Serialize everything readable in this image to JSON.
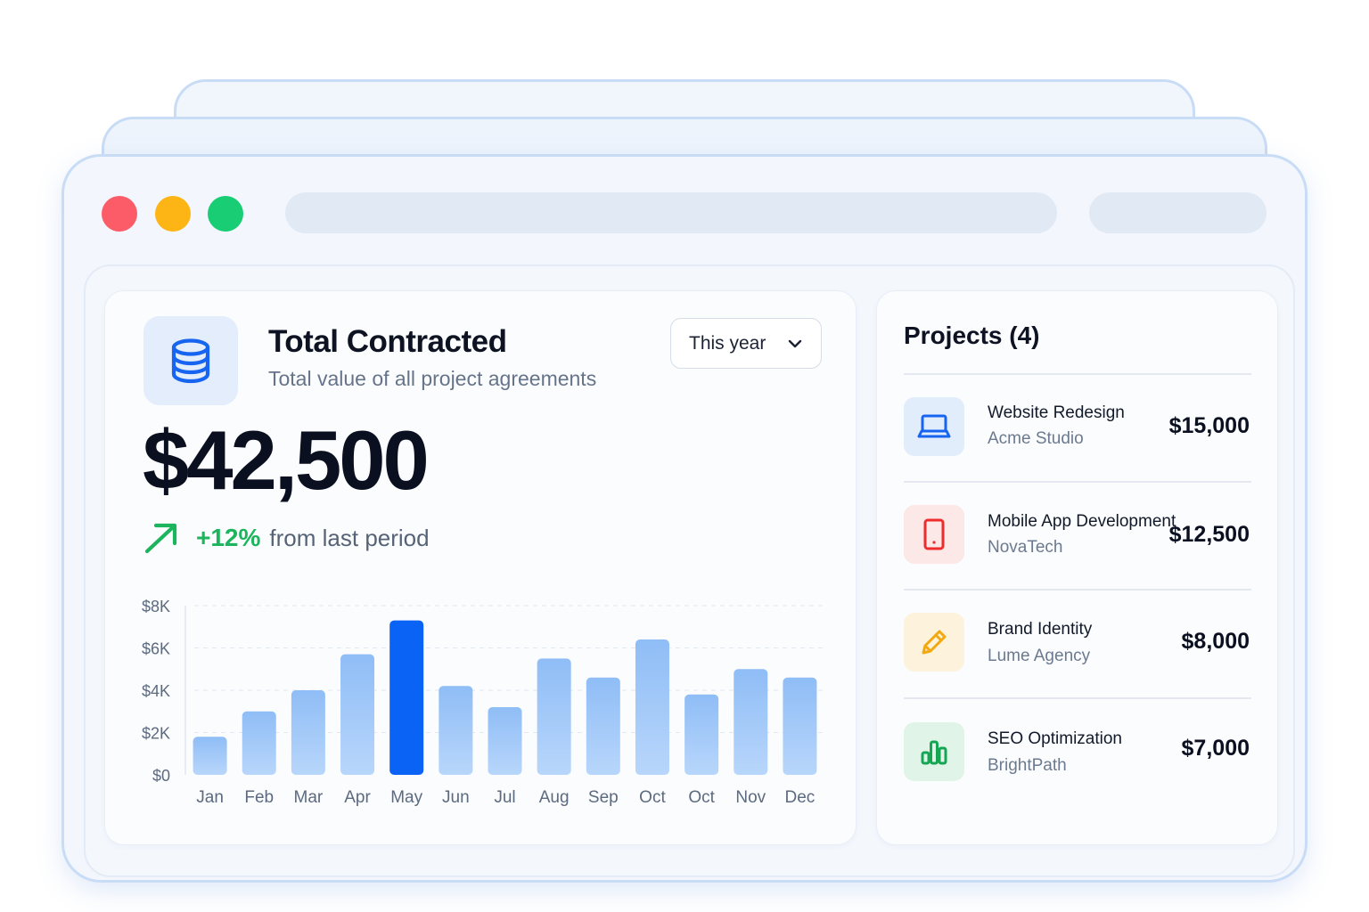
{
  "summary": {
    "title": "Total Contracted",
    "subtitle": "Total value of all project agreements",
    "period_select": {
      "selected": "This year"
    },
    "total_value": "$42,500",
    "trend": {
      "percent": "+12%",
      "text": "from last period"
    }
  },
  "chart_data": {
    "type": "bar",
    "categories": [
      "Jan",
      "Feb",
      "Mar",
      "Apr",
      "May",
      "Jun",
      "Jul",
      "Aug",
      "Sep",
      "Oct",
      "Oct",
      "Nov",
      "Dec"
    ],
    "values": [
      1800,
      3000,
      4000,
      5700,
      7300,
      4200,
      3200,
      5500,
      4600,
      6400,
      3800,
      5000,
      4600
    ],
    "y_ticks": [
      "$0",
      "$2K",
      "$4K",
      "$6K",
      "$8K"
    ],
    "ylim": [
      0,
      8000
    ],
    "highlight_index": 4,
    "grid": true,
    "colors": {
      "bar": "#8fbdf6",
      "bar_light": "#b8d6fb",
      "highlight": "#0b63f6",
      "grid": "#e2e8f0",
      "tick": "#5c6a80"
    }
  },
  "projects": {
    "title": "Projects (4)",
    "items": [
      {
        "name": "Website Redesign",
        "client": "Acme Studio",
        "amount": "$15,000",
        "icon": "laptop-icon",
        "icon_color": "#1764f0",
        "icon_bg": "#e2edfc"
      },
      {
        "name": "Mobile App Development",
        "client": "NovaTech",
        "amount": "$12,500",
        "icon": "smartphone-icon",
        "icon_color": "#ef2b2b",
        "icon_bg": "#fde8e8"
      },
      {
        "name": "Brand Identity",
        "client": "Lume Agency",
        "amount": "$8,000",
        "icon": "pencil-icon",
        "icon_color": "#f3a80f",
        "icon_bg": "#fdf3dc"
      },
      {
        "name": "SEO Optimization",
        "client": "BrightPath",
        "amount": "$7,000",
        "icon": "bar-chart-icon",
        "icon_color": "#15a653",
        "icon_bg": "#e0f5e8"
      }
    ]
  }
}
